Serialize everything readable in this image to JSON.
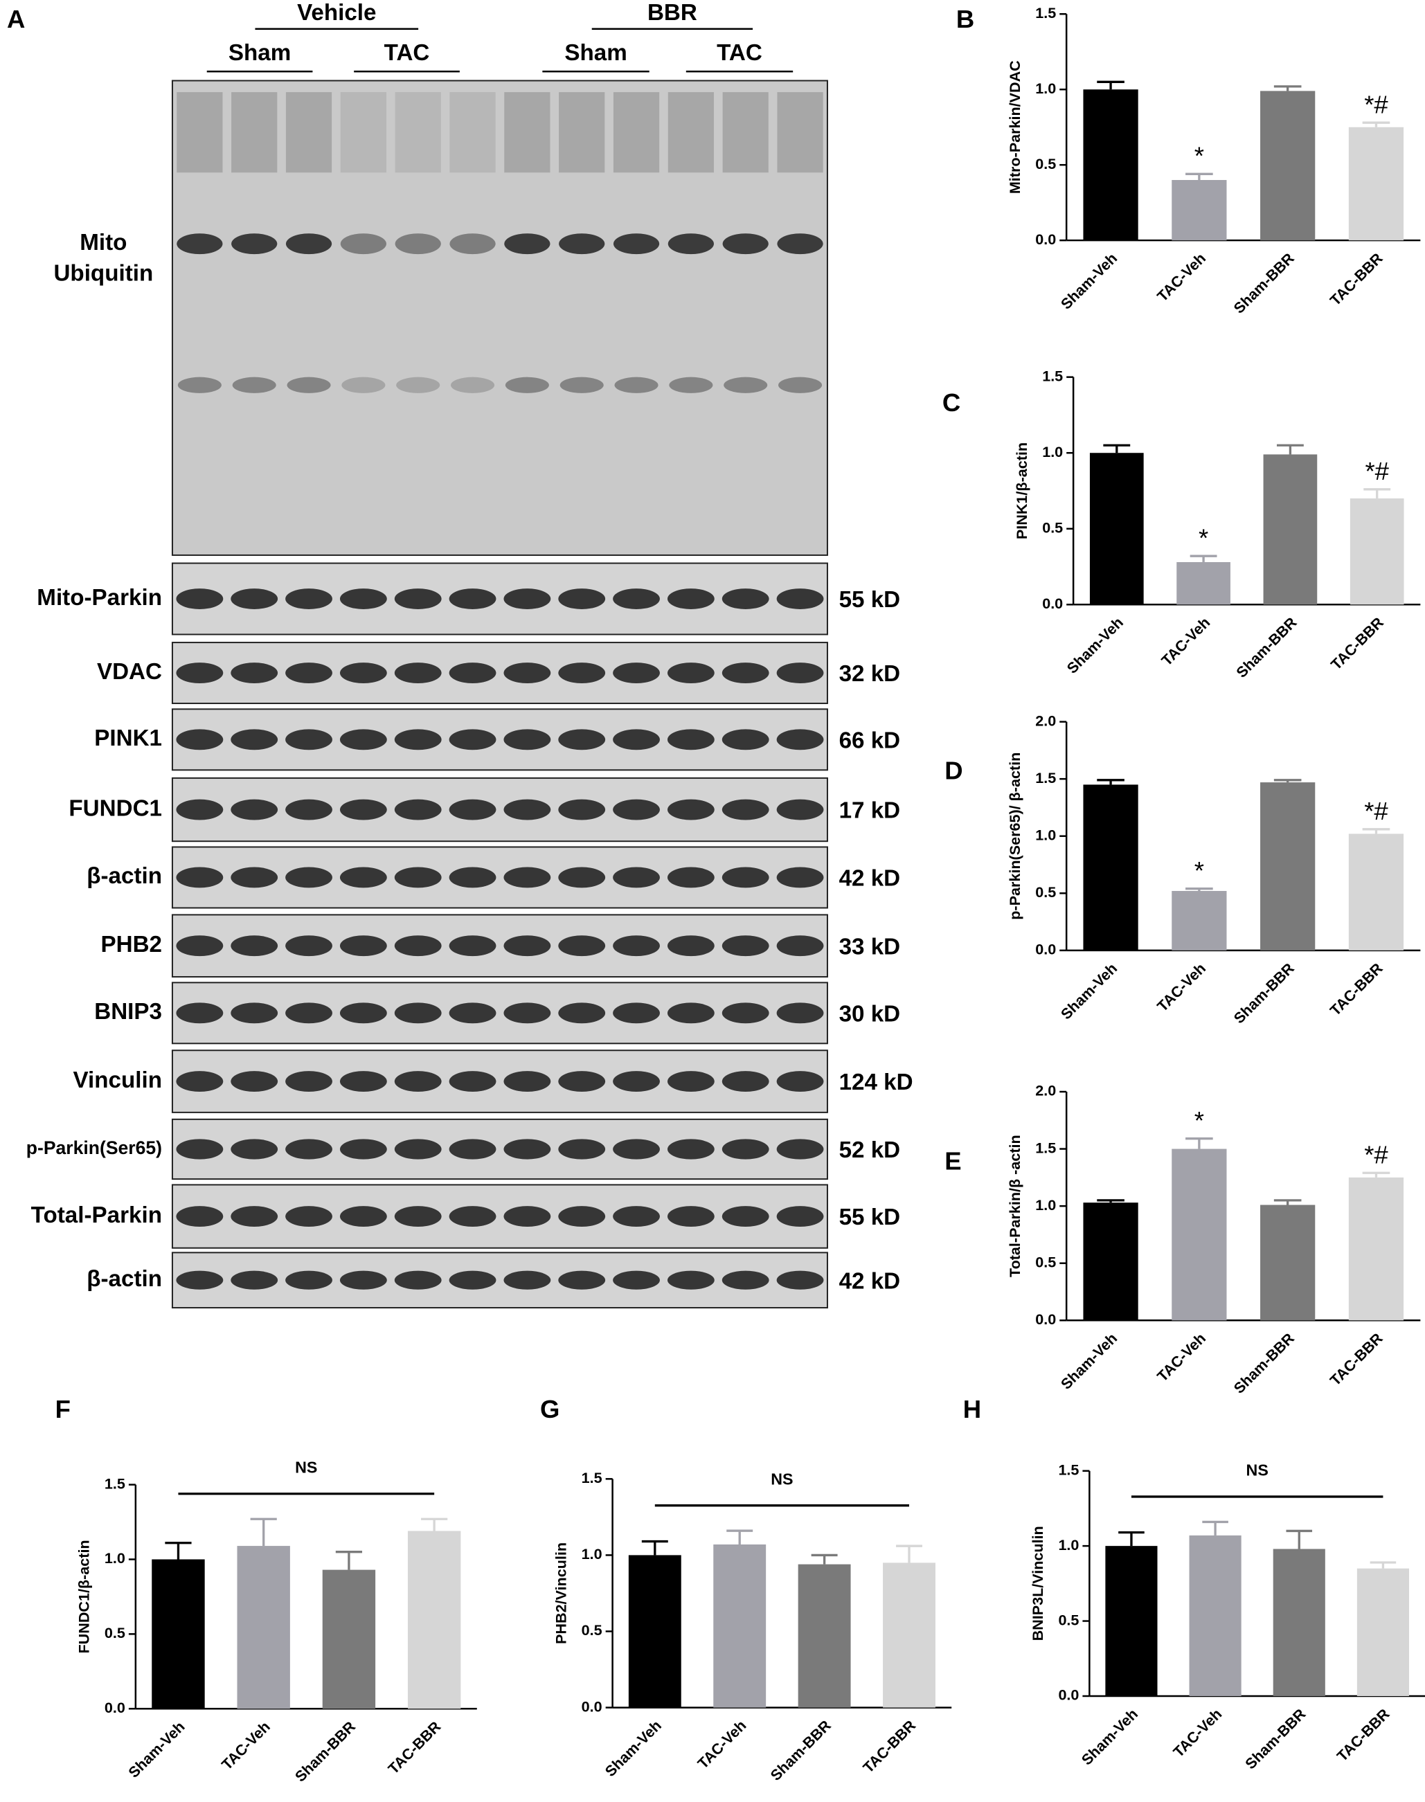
{
  "blot": {
    "panel": "A",
    "groups": [
      "Vehicle",
      "BBR"
    ],
    "subgroups": [
      "Sham",
      "TAC",
      "Sham",
      "TAC"
    ],
    "rows": [
      {
        "label": [
          "Mito",
          "Ubiquitin"
        ]
      },
      {
        "label": [
          "Mito-Parkin"
        ],
        "size": "55 kD"
      },
      {
        "label": [
          "VDAC"
        ],
        "size": "32 kD"
      },
      {
        "label": [
          "PINK1"
        ],
        "size": "66 kD"
      },
      {
        "label": [
          "FUNDC1"
        ],
        "size": "17 kD"
      },
      {
        "label": [
          "β-actin"
        ],
        "size": "42 kD"
      },
      {
        "label": [
          "PHB2"
        ],
        "size": "33 kD"
      },
      {
        "label": [
          "BNIP3"
        ],
        "size": "30 kD"
      },
      {
        "label": [
          "Vinculin"
        ],
        "size": "124 kD"
      },
      {
        "label": [
          "p-Parkin(Ser65)"
        ],
        "size": "52 kD"
      },
      {
        "label": [
          "Total-Parkin"
        ],
        "size": "55 kD"
      },
      {
        "label": [
          "β-actin"
        ],
        "size": "42 kD"
      }
    ]
  },
  "chart_data": [
    {
      "panel": "B",
      "type": "bar",
      "ylabel": "Mitro-Parkin/VDAC",
      "categories": [
        "Sham-Veh",
        "TAC-Veh",
        "Sham-BBR",
        "TAC-BBR"
      ],
      "values": [
        1.0,
        0.4,
        0.99,
        0.75
      ],
      "errors": [
        0.05,
        0.04,
        0.03,
        0.03
      ],
      "colors": [
        "#000000",
        "#a2a2aa",
        "#7a7a7a",
        "#d6d6d6"
      ],
      "ylim": [
        0,
        1.5
      ],
      "yticks": [
        {
          "value": 0,
          "label": "0.0"
        },
        {
          "value": 0.5,
          "label": "0.5"
        },
        {
          "value": 1,
          "label": "1.0"
        },
        {
          "value": 1.5,
          "label": "1.5"
        }
      ],
      "annotations": [
        {
          "index": 1,
          "text": "*"
        },
        {
          "index": 3,
          "text": "*#"
        }
      ]
    },
    {
      "panel": "C",
      "type": "bar",
      "ylabel": "PINK1/β-actin",
      "categories": [
        "Sham-Veh",
        "TAC-Veh",
        "Sham-BBR",
        "TAC-BBR"
      ],
      "values": [
        1.0,
        0.28,
        0.99,
        0.7
      ],
      "errors": [
        0.05,
        0.04,
        0.06,
        0.06
      ],
      "colors": [
        "#000000",
        "#a2a2aa",
        "#7a7a7a",
        "#d6d6d6"
      ],
      "ylim": [
        0,
        1.5
      ],
      "yticks": [
        {
          "value": 0,
          "label": "0.0"
        },
        {
          "value": 0.5,
          "label": "0.5"
        },
        {
          "value": 1,
          "label": "1.0"
        },
        {
          "value": 1.5,
          "label": "1.5"
        }
      ],
      "annotations": [
        {
          "index": 1,
          "text": "*"
        },
        {
          "index": 3,
          "text": "*#"
        }
      ]
    },
    {
      "panel": "D",
      "type": "bar",
      "ylabel": "p-Parkin(Ser65)/ β-actin",
      "categories": [
        "Sham-Veh",
        "TAC-Veh",
        "Sham-BBR",
        "TAC-BBR"
      ],
      "values": [
        1.45,
        0.52,
        1.47,
        1.02
      ],
      "errors": [
        0.04,
        0.02,
        0.02,
        0.04
      ],
      "colors": [
        "#000000",
        "#a2a2aa",
        "#7a7a7a",
        "#d6d6d6"
      ],
      "ylim": [
        0,
        2
      ],
      "yticks": [
        {
          "value": 0,
          "label": "0.0"
        },
        {
          "value": 0.5,
          "label": "0.5"
        },
        {
          "value": 1,
          "label": "1.0"
        },
        {
          "value": 1.5,
          "label": "1.5"
        },
        {
          "value": 2,
          "label": "2.0"
        }
      ],
      "annotations": [
        {
          "index": 1,
          "text": "*"
        },
        {
          "index": 3,
          "text": "*#"
        }
      ]
    },
    {
      "panel": "E",
      "type": "bar",
      "ylabel": "Total-Parkin/β -actin",
      "categories": [
        "Sham-Veh",
        "TAC-Veh",
        "Sham-BBR",
        "TAC-BBR"
      ],
      "values": [
        1.03,
        1.5,
        1.01,
        1.25
      ],
      "errors": [
        0.02,
        0.09,
        0.04,
        0.04
      ],
      "colors": [
        "#000000",
        "#a2a2aa",
        "#7a7a7a",
        "#d6d6d6"
      ],
      "ylim": [
        0,
        2
      ],
      "yticks": [
        {
          "value": 0,
          "label": "0.0"
        },
        {
          "value": 0.5,
          "label": "0.5"
        },
        {
          "value": 1,
          "label": "1.0"
        },
        {
          "value": 1.5,
          "label": "1.5"
        },
        {
          "value": 2,
          "label": "2.0"
        }
      ],
      "annotations": [
        {
          "index": 1,
          "text": "*"
        },
        {
          "index": 3,
          "text": "*#"
        }
      ]
    },
    {
      "panel": "F",
      "type": "bar",
      "ylabel": "FUNDC1/β-actin",
      "categories": [
        "Sham-Veh",
        "TAC-Veh",
        "Sham-BBR",
        "TAC-BBR"
      ],
      "values": [
        1.0,
        1.09,
        0.93,
        1.19
      ],
      "errors": [
        0.11,
        0.18,
        0.12,
        0.08
      ],
      "colors": [
        "#000000",
        "#a2a2aa",
        "#7a7a7a",
        "#d6d6d6"
      ],
      "ylim": [
        0,
        1.5
      ],
      "yticks": [
        {
          "value": 0,
          "label": "0.0"
        },
        {
          "value": 0.5,
          "label": "0.5"
        },
        {
          "value": 1,
          "label": "1.0"
        },
        {
          "value": 1.5,
          "label": "1.5"
        }
      ],
      "bracket_label": "NS"
    },
    {
      "panel": "G",
      "type": "bar",
      "ylabel": "PHB2/Vinculin",
      "categories": [
        "Sham-Veh",
        "TAC-Veh",
        "Sham-BBR",
        "TAC-BBR"
      ],
      "values": [
        1.0,
        1.07,
        0.94,
        0.95
      ],
      "errors": [
        0.09,
        0.09,
        0.06,
        0.11
      ],
      "colors": [
        "#000000",
        "#a2a2aa",
        "#7a7a7a",
        "#d6d6d6"
      ],
      "ylim": [
        0,
        1.5
      ],
      "yticks": [
        {
          "value": 0,
          "label": "0.0"
        },
        {
          "value": 0.5,
          "label": "0.5"
        },
        {
          "value": 1,
          "label": "1.0"
        },
        {
          "value": 1.5,
          "label": "1.5"
        }
      ],
      "bracket_label": "NS"
    },
    {
      "panel": "H",
      "type": "bar",
      "ylabel": "BNIP3L/Vinculin",
      "categories": [
        "Sham-Veh",
        "TAC-Veh",
        "Sham-BBR",
        "TAC-BBR"
      ],
      "values": [
        1.0,
        1.07,
        0.98,
        0.85
      ],
      "errors": [
        0.09,
        0.09,
        0.12,
        0.04
      ],
      "colors": [
        "#000000",
        "#a2a2aa",
        "#7a7a7a",
        "#d6d6d6"
      ],
      "ylim": [
        0,
        1.5
      ],
      "yticks": [
        {
          "value": 0,
          "label": "0.0"
        },
        {
          "value": 0.5,
          "label": "0.5"
        },
        {
          "value": 1,
          "label": "1.0"
        },
        {
          "value": 1.5,
          "label": "1.5"
        }
      ],
      "bracket_label": "NS"
    }
  ]
}
